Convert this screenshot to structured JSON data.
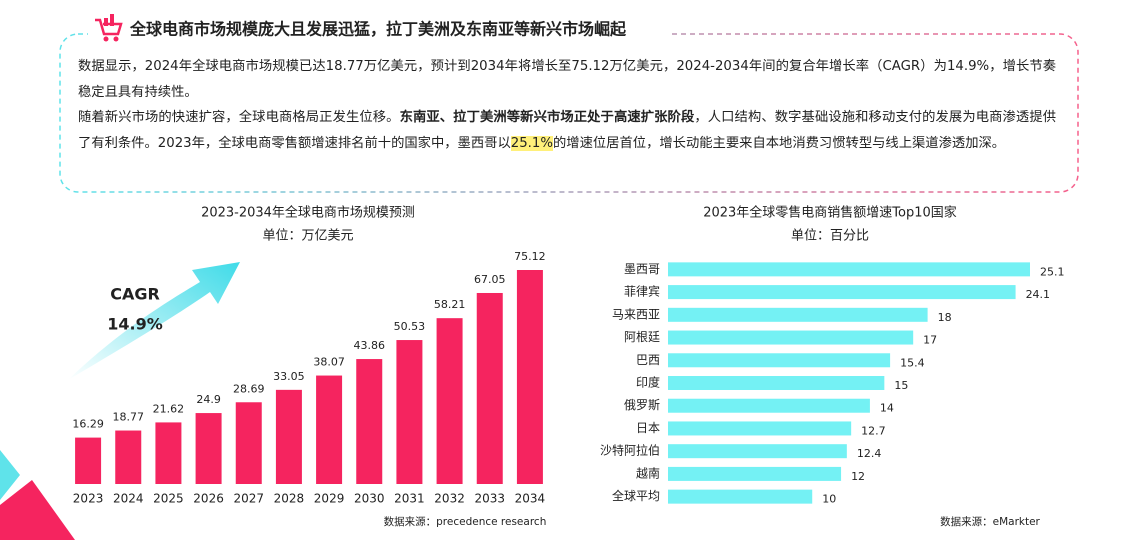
{
  "header": {
    "title": "全球电商市场规模庞大且发展迅猛，拉丁美洲及东南亚等新兴市场崛起"
  },
  "paragraphs": [
    [
      "数据显示，2024年全球电商市场规模已达18.77万亿美元，预计到2034年将增长至75.12万亿美元，2024-2034年间的复合年增长率（CAGR）为14.9%，增长节奏稳定且具有持续性。"
    ],
    [
      "随着新兴市场的快速扩容，全球电商格局正发生位移。",
      "东南亚、拉丁美洲等新兴市场正处于高速扩张阶段",
      "，人口结构、数字基础设施和移动支付的发展为电商渗透提供了有利条件。2023年，全球电商零售额增速排名前十的国家中，墨西哥以",
      "25.1%",
      "的增速位居首位，增长动能主要来自本地消费习惯转型与线上渠道渗透加深。"
    ]
  ],
  "chart_data": [
    {
      "type": "bar",
      "title": "2023-2034年全球电商市场规模预测",
      "subtitle": "单位：万亿美元",
      "categories": [
        "2023",
        "2024",
        "2025",
        "2026",
        "2027",
        "2028",
        "2029",
        "2030",
        "2031",
        "2032",
        "2033",
        "2034"
      ],
      "values": [
        16.29,
        18.77,
        21.62,
        24.9,
        28.69,
        33.05,
        38.07,
        43.86,
        50.53,
        58.21,
        67.05,
        75.12
      ],
      "color": "#f5245f",
      "annotation": {
        "label": "CAGR",
        "value": "14.9%"
      },
      "source": "数据来源：precedence research"
    },
    {
      "type": "hbar",
      "title": "2023年全球零售电商销售额增速Top10国家",
      "subtitle": "单位：百分比",
      "categories": [
        "墨西哥",
        "菲律宾",
        "马来西亚",
        "阿根廷",
        "巴西",
        "印度",
        "俄罗斯",
        "日本",
        "沙特阿拉伯",
        "越南",
        "全球平均"
      ],
      "values": [
        25.1,
        24.1,
        18,
        17,
        15.4,
        15,
        14,
        12.7,
        12.4,
        12,
        10
      ],
      "color": "#74f1f4",
      "source": "数据来源：eMarkter"
    }
  ]
}
